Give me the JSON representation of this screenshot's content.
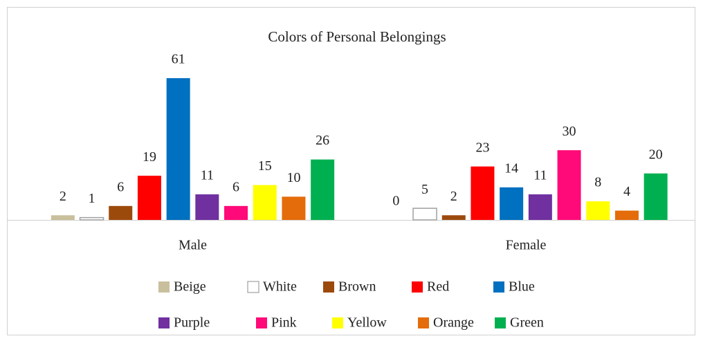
{
  "chart_data": {
    "type": "bar",
    "title": "Colors of Personal Belongings",
    "categories": [
      "Male",
      "Female"
    ],
    "ylim": [
      0,
      65
    ],
    "series": [
      {
        "name": "Beige",
        "color": "#c9bf9c",
        "values": [
          2,
          0
        ]
      },
      {
        "name": "White",
        "color": "#ffffff",
        "values": [
          1,
          5
        ]
      },
      {
        "name": "Brown",
        "color": "#9c4a0c",
        "values": [
          6,
          2
        ]
      },
      {
        "name": "Red",
        "color": "#ff0000",
        "values": [
          19,
          23
        ]
      },
      {
        "name": "Blue",
        "color": "#0070c0",
        "values": [
          61,
          14
        ]
      },
      {
        "name": "Purple",
        "color": "#7030a0",
        "values": [
          11,
          11
        ]
      },
      {
        "name": "Pink",
        "color": "#ff0a78",
        "values": [
          6,
          30
        ]
      },
      {
        "name": "Yellow",
        "color": "#ffff00",
        "values": [
          15,
          8
        ]
      },
      {
        "name": "Orange",
        "color": "#e46c0a",
        "values": [
          10,
          4
        ]
      },
      {
        "name": "Green",
        "color": "#00b050",
        "values": [
          26,
          20
        ]
      }
    ]
  }
}
